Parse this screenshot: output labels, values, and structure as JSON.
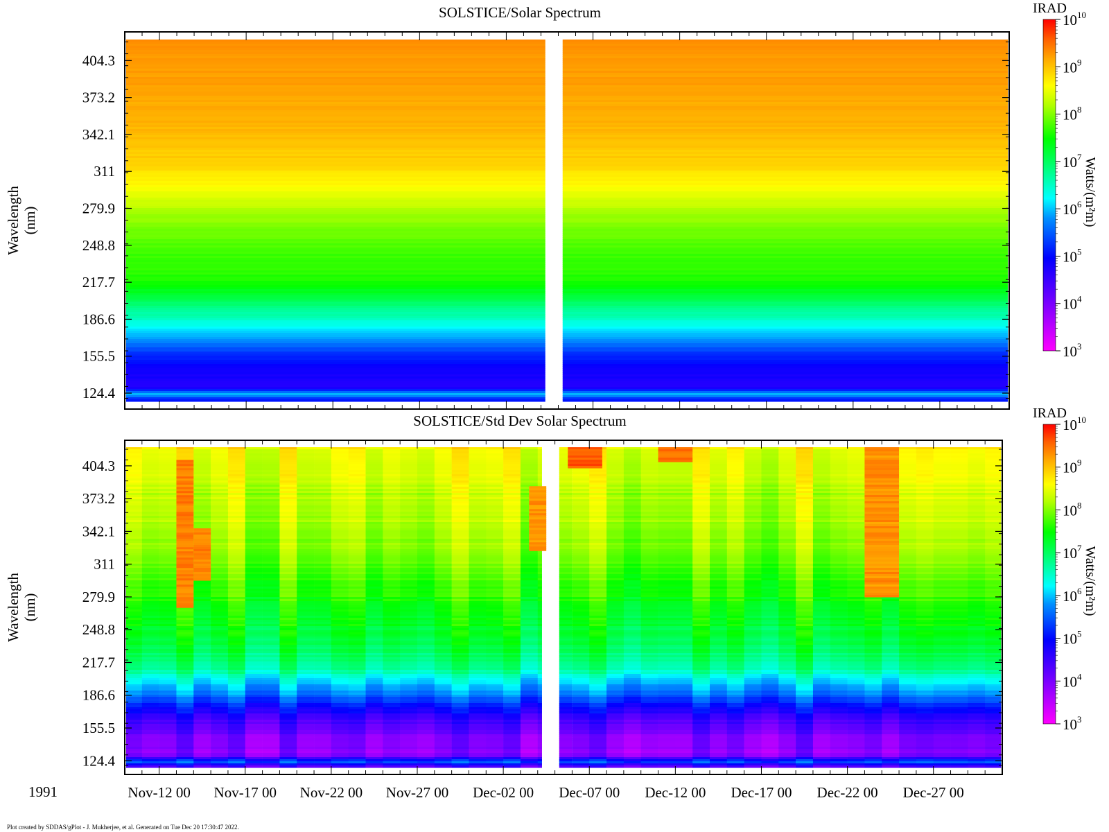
{
  "footer": "Plot created by SDDAS/gPlot - J. Mukherjee, et al.  Generated on Tue Dec 20 17:30:47 2022.",
  "year_label": "1991",
  "chart_data": [
    {
      "type": "heatmap",
      "title": "SOLSTICE/Solar Spectrum",
      "ylabel": [
        "Wavelength",
        "(nm)"
      ],
      "yticks": [
        124.4,
        155.5,
        186.6,
        217.7,
        248.8,
        279.9,
        311,
        342.1,
        373.2,
        404.3
      ],
      "ylim": [
        118,
        422
      ],
      "xlim_days": [
        "1991-11-10 00:00",
        "1991-12-31 00:00"
      ],
      "xticks": [
        "Nov-12 00",
        "Nov-17 00",
        "Nov-22 00",
        "Nov-27 00",
        "Dec-02 00",
        "Dec-07 00",
        "Dec-12 00",
        "Dec-17 00",
        "Dec-22 00",
        "Dec-27 00"
      ],
      "data_gap": [
        "1991-12-04 06:00",
        "1991-12-05 06:00"
      ],
      "colorbar": {
        "label": "IRAD",
        "units": "Watts/(m²m)",
        "scale": "log",
        "range_exp": [
          3,
          10
        ],
        "tick_exps": [
          3,
          4,
          5,
          6,
          7,
          8,
          9,
          10
        ],
        "colormap": "rainbow (magenta-blue-cyan-green-yellow-red)"
      },
      "log_irradiance_vs_wavelength": {
        "wavelength_nm": [
          120,
          124,
          130,
          140,
          150,
          160,
          170,
          180,
          190,
          200,
          210,
          220,
          240,
          260,
          280,
          300,
          320,
          350,
          380,
          400,
          420
        ],
        "log10_irad": [
          5.1,
          6.0,
          4.7,
          4.8,
          5.0,
          5.3,
          5.8,
          6.2,
          6.6,
          6.9,
          7.3,
          7.6,
          7.7,
          7.9,
          8.2,
          8.6,
          8.9,
          9.1,
          9.2,
          9.25,
          9.3
        ]
      }
    },
    {
      "type": "heatmap",
      "title": "SOLSTICE/Std Dev Solar Spectrum",
      "ylabel": [
        "Wavelength",
        "(nm)"
      ],
      "yticks": [
        124.4,
        155.5,
        186.6,
        217.7,
        248.8,
        279.9,
        311,
        342.1,
        373.2,
        404.3
      ],
      "ylim": [
        118,
        422
      ],
      "xticks": [
        "Nov-12 00",
        "Nov-17 00",
        "Nov-22 00",
        "Nov-27 00",
        "Dec-02 00",
        "Dec-07 00",
        "Dec-12 00",
        "Dec-17 00",
        "Dec-22 00",
        "Dec-27 00"
      ],
      "colorbar": {
        "label": "IRAD",
        "units": "Watts/(m²m)",
        "scale": "log",
        "range_exp": [
          3,
          10
        ],
        "tick_exps": [
          3,
          4,
          5,
          6,
          7,
          8,
          9,
          10
        ]
      },
      "log_irradiance_vs_wavelength": {
        "wavelength_nm": [
          120,
          124,
          130,
          140,
          150,
          160,
          170,
          180,
          190,
          200,
          210,
          220,
          240,
          260,
          280,
          300,
          320,
          350,
          380,
          400,
          420
        ],
        "log10_irad": [
          4.3,
          5.5,
          3.9,
          3.9,
          4.0,
          4.3,
          4.7,
          5.2,
          5.7,
          6.1,
          6.6,
          6.9,
          7.2,
          7.4,
          7.6,
          7.8,
          8.0,
          8.2,
          8.3,
          8.45,
          8.6
        ]
      },
      "high_std_intervals": [
        {
          "start": "1991-11-13 00:00",
          "end": "1991-11-14 00:00",
          "min_nm": 270,
          "max_nm": 410,
          "log10_irad": 9.4
        },
        {
          "start": "1991-11-14 00:00",
          "end": "1991-11-15 00:00",
          "min_nm": 296,
          "max_nm": 345,
          "log10_irad": 9.4
        },
        {
          "start": "1991-12-03 12:00",
          "end": "1991-12-04 12:00",
          "min_nm": 325,
          "max_nm": 385,
          "log10_irad": 9.3
        },
        {
          "start": "1991-12-05 18:00",
          "end": "1991-12-07 18:00",
          "min_nm": 404,
          "max_nm": 422,
          "log10_irad": 9.6
        },
        {
          "start": "1991-12-11 00:00",
          "end": "1991-12-13 00:00",
          "min_nm": 410,
          "max_nm": 422,
          "log10_irad": 9.5
        },
        {
          "start": "1991-12-23 00:00",
          "end": "1991-12-25 00:00",
          "min_nm": 280,
          "max_nm": 422,
          "log10_irad": 9.3
        }
      ]
    }
  ]
}
